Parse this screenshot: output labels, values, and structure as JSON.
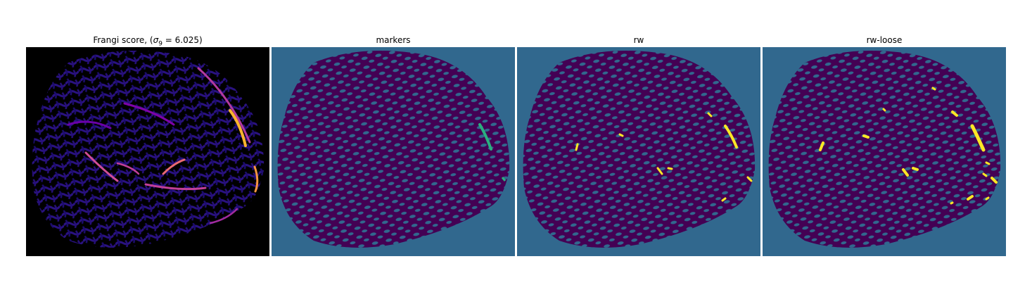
{
  "figure": {
    "panels": [
      {
        "id": "frangi",
        "title_prefix": "Frangi score, (",
        "title_sigma": "σ",
        "title_sub": "9",
        "title_suffix": " = 6.025)",
        "colormap": "plasma"
      },
      {
        "id": "markers",
        "title": "markers",
        "colormap": "viridis"
      },
      {
        "id": "rw",
        "title": "rw",
        "colormap": "viridis"
      },
      {
        "id": "rw-loose",
        "title": "rw-loose",
        "colormap": "viridis"
      }
    ],
    "colors": {
      "frangi_background": "#000000",
      "frangi_mesh": "#1c0c6e",
      "frangi_bright_vessel": "#d14e97",
      "frangi_hot_vessel": "#fdb42f",
      "label_background": "#31688e",
      "label_tissue": "#440154",
      "label_marker_vessel": "#2ab07f",
      "label_segment": "#fde725"
    }
  }
}
